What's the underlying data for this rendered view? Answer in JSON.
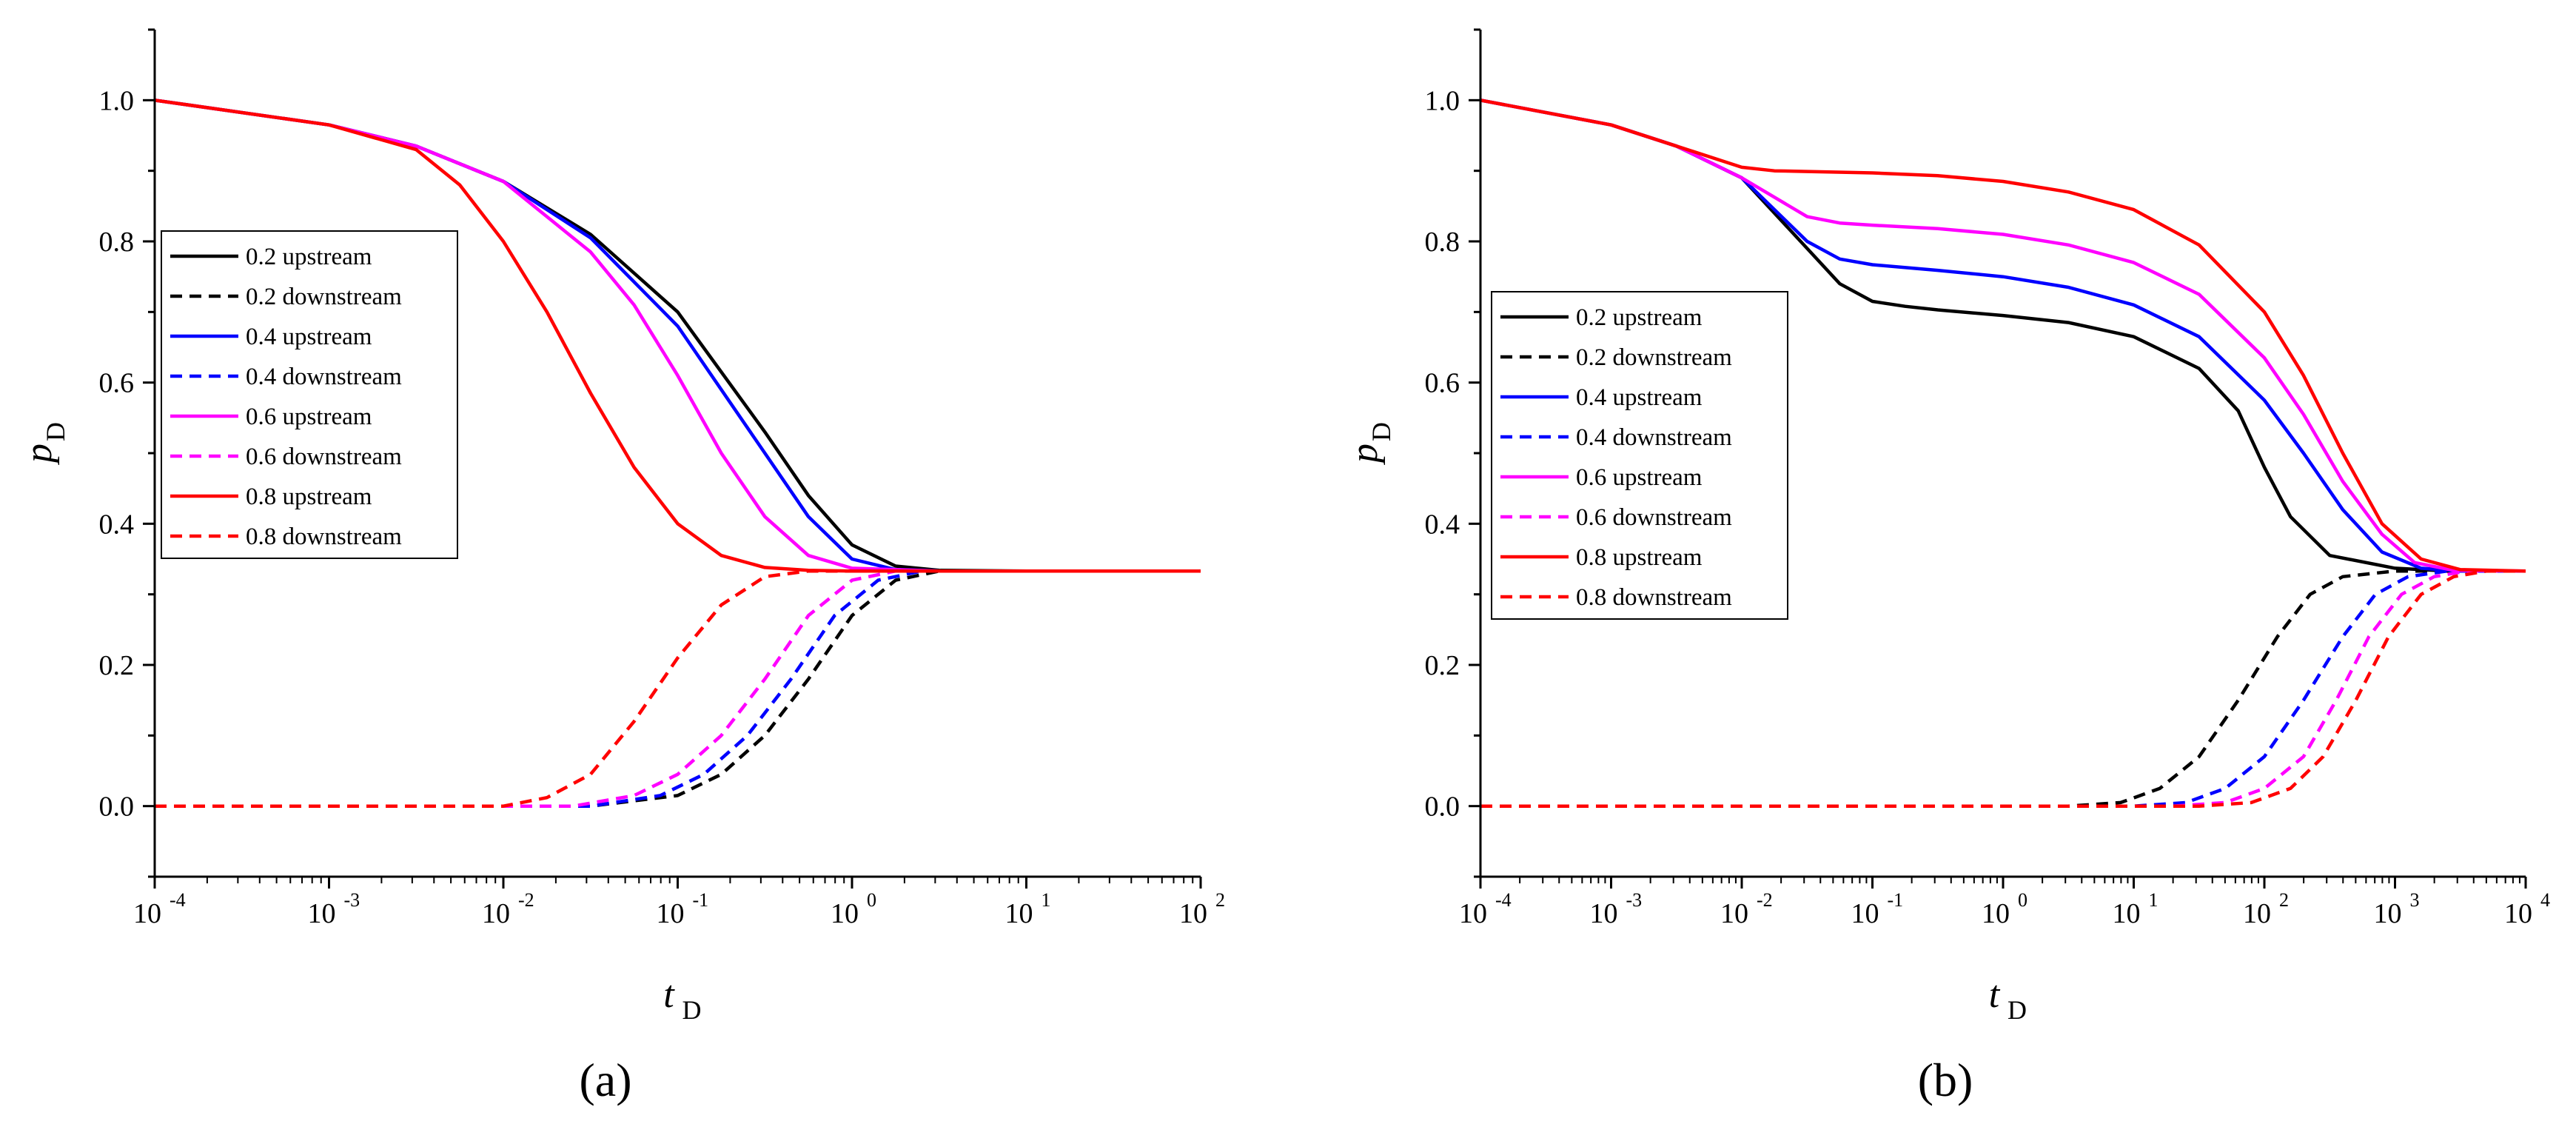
{
  "figure": {
    "panel_labels": [
      "(a)",
      "(b)"
    ]
  },
  "chart_data": [
    {
      "type": "line",
      "panel": "(a)",
      "xlabel": "t",
      "xlabel_sub": "D",
      "ylabel": "p",
      "ylabel_sub": "D",
      "xscale": "log",
      "xlim": [
        -4,
        2
      ],
      "ylim": [
        -0.1,
        1.1
      ],
      "xticks": [
        {
          "base": "10",
          "exp": "-4"
        },
        {
          "base": "10",
          "exp": "-3"
        },
        {
          "base": "10",
          "exp": "-2"
        },
        {
          "base": "10",
          "exp": "-1"
        },
        {
          "base": "10",
          "exp": "0"
        },
        {
          "base": "10",
          "exp": "1"
        },
        {
          "base": "10",
          "exp": "2"
        }
      ],
      "yticks": [
        "0.0",
        "0.2",
        "0.4",
        "0.6",
        "0.8",
        "1.0"
      ],
      "legend_position": "middle-left",
      "colors": {
        "0.2": "#000000",
        "0.4": "#0000ff",
        "0.6": "#ff00ff",
        "0.8": "#ff0000"
      },
      "series": [
        {
          "name": "0.2 upstream",
          "color": "#000000",
          "dash": false,
          "x": [
            -4,
            -3,
            -2.5,
            -2,
            -1.5,
            -1,
            -0.5,
            -0.25,
            0,
            0.25,
            0.5,
            1,
            2
          ],
          "y": [
            1.0,
            0.965,
            0.935,
            0.885,
            0.81,
            0.7,
            0.53,
            0.44,
            0.37,
            0.34,
            0.334,
            0.333,
            0.333
          ]
        },
        {
          "name": "0.2 downstream",
          "color": "#000000",
          "dash": true,
          "x": [
            -4,
            -2,
            -1.5,
            -1,
            -0.75,
            -0.5,
            -0.25,
            0,
            0.25,
            0.5,
            1,
            2
          ],
          "y": [
            0.0,
            0.0,
            0.0,
            0.015,
            0.045,
            0.1,
            0.18,
            0.27,
            0.32,
            0.333,
            0.333,
            0.333
          ]
        },
        {
          "name": "0.4 upstream",
          "color": "#0000ff",
          "dash": false,
          "x": [
            -4,
            -3,
            -2.5,
            -2,
            -1.5,
            -1,
            -0.5,
            -0.25,
            0,
            0.25,
            0.5,
            1,
            2
          ],
          "y": [
            1.0,
            0.965,
            0.935,
            0.885,
            0.805,
            0.68,
            0.5,
            0.41,
            0.35,
            0.335,
            0.333,
            0.333,
            0.333
          ]
        },
        {
          "name": "0.4 downstream",
          "color": "#0000ff",
          "dash": true,
          "x": [
            -4,
            -2,
            -1.5,
            -1.1,
            -0.85,
            -0.6,
            -0.35,
            -0.1,
            0.15,
            0.4,
            1,
            2
          ],
          "y": [
            0.0,
            0.0,
            0.0,
            0.015,
            0.045,
            0.1,
            0.18,
            0.27,
            0.32,
            0.333,
            0.333,
            0.333
          ]
        },
        {
          "name": "0.6 upstream",
          "color": "#ff00ff",
          "dash": false,
          "x": [
            -4,
            -3,
            -2.5,
            -2,
            -1.5,
            -1.25,
            -1,
            -0.75,
            -0.5,
            -0.25,
            0,
            0.5,
            2
          ],
          "y": [
            1.0,
            0.965,
            0.935,
            0.885,
            0.785,
            0.71,
            0.61,
            0.5,
            0.41,
            0.355,
            0.337,
            0.333,
            0.333
          ]
        },
        {
          "name": "0.6 downstream",
          "color": "#ff00ff",
          "dash": true,
          "x": [
            -4,
            -2,
            -1.6,
            -1.25,
            -1,
            -0.75,
            -0.5,
            -0.25,
            0,
            0.25,
            1,
            2
          ],
          "y": [
            0.0,
            0.0,
            0.0,
            0.015,
            0.045,
            0.1,
            0.18,
            0.27,
            0.32,
            0.333,
            0.333,
            0.333
          ]
        },
        {
          "name": "0.8 upstream",
          "color": "#ff0000",
          "dash": false,
          "x": [
            -4,
            -3,
            -2.5,
            -2.25,
            -2,
            -1.75,
            -1.5,
            -1.25,
            -1,
            -0.75,
            -0.5,
            -0.25,
            0,
            2
          ],
          "y": [
            1.0,
            0.965,
            0.93,
            0.88,
            0.8,
            0.7,
            0.585,
            0.48,
            0.4,
            0.355,
            0.338,
            0.334,
            0.333,
            0.333
          ]
        },
        {
          "name": "0.8 downstream",
          "color": "#ff0000",
          "dash": true,
          "x": [
            -4,
            -2,
            -1.75,
            -1.5,
            -1.25,
            -1,
            -0.75,
            -0.5,
            -0.25,
            0,
            2
          ],
          "y": [
            0.0,
            0.0,
            0.012,
            0.045,
            0.12,
            0.21,
            0.285,
            0.325,
            0.333,
            0.333,
            0.333
          ]
        }
      ]
    },
    {
      "type": "line",
      "panel": "(b)",
      "xlabel": "t",
      "xlabel_sub": "D",
      "ylabel": "p",
      "ylabel_sub": "D",
      "xscale": "log",
      "xlim": [
        -4,
        4
      ],
      "ylim": [
        -0.1,
        1.1
      ],
      "xticks": [
        {
          "base": "10",
          "exp": "-4"
        },
        {
          "base": "10",
          "exp": "-3"
        },
        {
          "base": "10",
          "exp": "-2"
        },
        {
          "base": "10",
          "exp": "-1"
        },
        {
          "base": "10",
          "exp": "0"
        },
        {
          "base": "10",
          "exp": "1"
        },
        {
          "base": "10",
          "exp": "2"
        },
        {
          "base": "10",
          "exp": "3"
        },
        {
          "base": "10",
          "exp": "4"
        }
      ],
      "yticks": [
        "0.0",
        "0.2",
        "0.4",
        "0.6",
        "0.8",
        "1.0"
      ],
      "legend_position": "middle-left",
      "series": [
        {
          "name": "0.2 upstream",
          "color": "#000000",
          "dash": false,
          "x": [
            -4,
            -3,
            -2.5,
            -2,
            -1.5,
            -1.25,
            -1,
            -0.75,
            -0.5,
            0,
            0.5,
            1,
            1.5,
            1.8,
            2,
            2.2,
            2.5,
            3,
            3.4,
            4
          ],
          "y": [
            1.0,
            0.965,
            0.935,
            0.89,
            0.79,
            0.74,
            0.715,
            0.708,
            0.703,
            0.695,
            0.685,
            0.665,
            0.62,
            0.56,
            0.48,
            0.41,
            0.355,
            0.337,
            0.333,
            0.333
          ]
        },
        {
          "name": "0.2 downstream",
          "color": "#000000",
          "dash": true,
          "x": [
            -4,
            0.5,
            0.9,
            1.2,
            1.5,
            1.8,
            2.1,
            2.35,
            2.6,
            3,
            4
          ],
          "y": [
            0.0,
            0.0,
            0.005,
            0.025,
            0.07,
            0.15,
            0.24,
            0.3,
            0.325,
            0.333,
            0.333
          ]
        },
        {
          "name": "0.4 upstream",
          "color": "#0000ff",
          "dash": false,
          "x": [
            -4,
            -3,
            -2.5,
            -2,
            -1.5,
            -1.25,
            -1,
            -0.5,
            0,
            0.5,
            1,
            1.5,
            2,
            2.3,
            2.6,
            2.9,
            3.2,
            3.5,
            4
          ],
          "y": [
            1.0,
            0.965,
            0.935,
            0.89,
            0.8,
            0.775,
            0.767,
            0.759,
            0.75,
            0.735,
            0.71,
            0.665,
            0.575,
            0.5,
            0.42,
            0.36,
            0.337,
            0.333,
            0.333
          ]
        },
        {
          "name": "0.4 downstream",
          "color": "#0000ff",
          "dash": true,
          "x": [
            -4,
            1.0,
            1.4,
            1.7,
            2.0,
            2.3,
            2.6,
            2.85,
            3.1,
            3.4,
            4
          ],
          "y": [
            0.0,
            0.0,
            0.005,
            0.025,
            0.07,
            0.15,
            0.24,
            0.3,
            0.325,
            0.333,
            0.333
          ]
        },
        {
          "name": "0.6 upstream",
          "color": "#ff00ff",
          "dash": false,
          "x": [
            -4,
            -3,
            -2.5,
            -2,
            -1.5,
            -1.25,
            -1,
            -0.5,
            0,
            0.5,
            1,
            1.5,
            2,
            2.3,
            2.6,
            2.9,
            3.15,
            3.45,
            4
          ],
          "y": [
            1.0,
            0.965,
            0.935,
            0.89,
            0.835,
            0.826,
            0.823,
            0.818,
            0.81,
            0.795,
            0.77,
            0.725,
            0.635,
            0.555,
            0.46,
            0.385,
            0.345,
            0.334,
            0.333
          ]
        },
        {
          "name": "0.6 downstream",
          "color": "#ff00ff",
          "dash": true,
          "x": [
            -4,
            1.3,
            1.7,
            2.0,
            2.3,
            2.55,
            2.8,
            3.05,
            3.3,
            3.55,
            4
          ],
          "y": [
            0.0,
            0.0,
            0.005,
            0.025,
            0.07,
            0.15,
            0.24,
            0.3,
            0.325,
            0.333,
            0.333
          ]
        },
        {
          "name": "0.8 upstream",
          "color": "#ff0000",
          "dash": false,
          "x": [
            -4,
            -3,
            -2.5,
            -2,
            -1.75,
            -1.5,
            -1,
            -0.5,
            0,
            0.5,
            1,
            1.5,
            2,
            2.3,
            2.6,
            2.9,
            3.2,
            3.5,
            4
          ],
          "y": [
            1.0,
            0.965,
            0.935,
            0.905,
            0.9,
            0.899,
            0.897,
            0.893,
            0.885,
            0.87,
            0.845,
            0.795,
            0.7,
            0.61,
            0.5,
            0.4,
            0.35,
            0.335,
            0.333
          ]
        },
        {
          "name": "0.8 downstream",
          "color": "#ff0000",
          "dash": true,
          "x": [
            -4,
            1.5,
            1.9,
            2.2,
            2.45,
            2.7,
            2.95,
            3.2,
            3.45,
            3.7,
            4
          ],
          "y": [
            0.0,
            0.0,
            0.005,
            0.025,
            0.07,
            0.15,
            0.24,
            0.3,
            0.325,
            0.333,
            0.333
          ]
        }
      ]
    }
  ]
}
